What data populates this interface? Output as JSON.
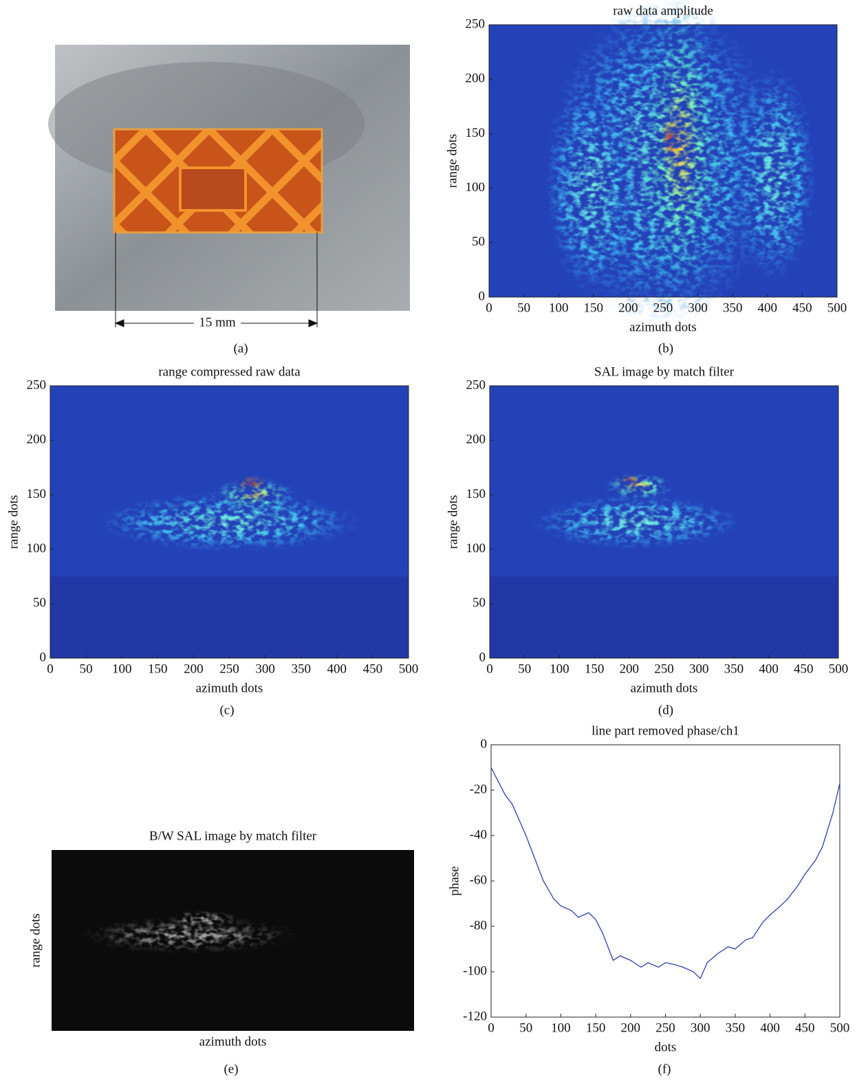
{
  "chart_data": [
    {
      "type": "image",
      "annotation": "15 mm",
      "caption": "(a)"
    },
    {
      "type": "heatmap",
      "title": "raw data amplitude",
      "x_label": "azimuth dots",
      "y_label": "range dots",
      "xlim": [
        0,
        500
      ],
      "ylim": [
        0,
        250
      ],
      "xticks": [
        0,
        50,
        100,
        150,
        200,
        250,
        300,
        350,
        400,
        450,
        500
      ],
      "yticks": [
        0,
        50,
        100,
        150,
        200,
        250
      ],
      "caption": "(b)"
    },
    {
      "type": "heatmap",
      "title": "range compressed raw data",
      "x_label": "azimuth dots",
      "y_label": "range dots",
      "xlim": [
        0,
        500
      ],
      "ylim": [
        0,
        250
      ],
      "xticks": [
        0,
        50,
        100,
        150,
        200,
        250,
        300,
        350,
        400,
        450,
        500
      ],
      "yticks": [
        0,
        50,
        100,
        150,
        200,
        250
      ],
      "caption": "(c)"
    },
    {
      "type": "heatmap",
      "title": "SAL image by match filter",
      "x_label": "azimuth dots",
      "y_label": "range dots",
      "xlim": [
        0,
        500
      ],
      "ylim": [
        0,
        250
      ],
      "xticks": [
        0,
        50,
        100,
        150,
        200,
        250,
        300,
        350,
        400,
        450,
        500
      ],
      "yticks": [
        0,
        50,
        100,
        150,
        200,
        250
      ],
      "caption": "(d)"
    },
    {
      "type": "grayimage",
      "title": "B/W SAL image by match filter",
      "x_label": "azimuth dots",
      "y_label": "range dots",
      "caption": "(e)"
    },
    {
      "type": "line",
      "title": "line part removed phase/ch1",
      "x_label": "dots",
      "y_label": "phase",
      "color": "#2b3fa8",
      "xlim": [
        0,
        500
      ],
      "ylim": [
        -120,
        0
      ],
      "xticks": [
        0,
        50,
        100,
        150,
        200,
        250,
        300,
        350,
        400,
        450,
        500
      ],
      "yticks": [
        -120,
        -100,
        -80,
        -60,
        -40,
        -20,
        0
      ],
      "x": [
        0,
        10,
        20,
        30,
        40,
        50,
        60,
        75,
        90,
        100,
        115,
        125,
        140,
        150,
        160,
        175,
        185,
        200,
        215,
        225,
        240,
        250,
        265,
        275,
        290,
        300,
        310,
        325,
        340,
        350,
        365,
        375,
        390,
        400,
        415,
        425,
        440,
        450,
        465,
        475,
        490,
        500
      ],
      "values": [
        -10,
        -16,
        -22,
        -26,
        -33,
        -40,
        -48,
        -60,
        -68,
        -71,
        -73,
        -76,
        -74,
        -77,
        -83,
        -95,
        -93,
        -95,
        -98,
        -96,
        -98,
        -96,
        -97,
        -98,
        -100,
        -103,
        -96,
        -92,
        -89,
        -90,
        -86,
        -85,
        -78,
        -75,
        -71,
        -68,
        -62,
        -57,
        -51,
        -45,
        -30,
        -17
      ],
      "caption": "(f)"
    }
  ]
}
